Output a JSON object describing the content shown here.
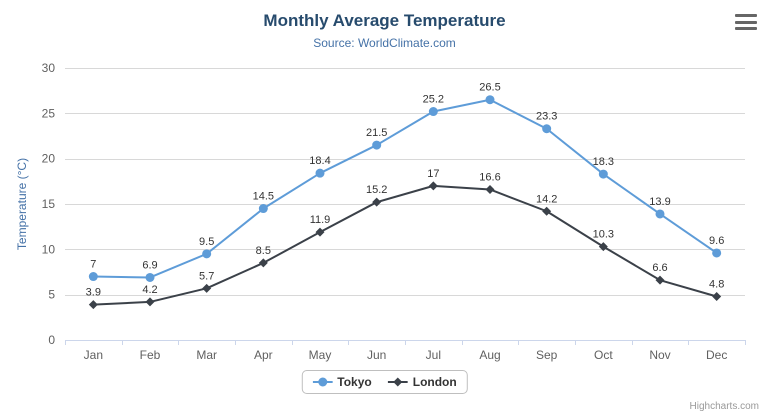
{
  "credits": {
    "label": "Highcharts.com"
  },
  "icons": {
    "export_menu": "hamburger-menu-icon"
  },
  "chart_data": {
    "type": "line",
    "title": "Monthly Average Temperature",
    "subtitle": "Source: WorldClimate.com",
    "categories": [
      "Jan",
      "Feb",
      "Mar",
      "Apr",
      "May",
      "Jun",
      "Jul",
      "Aug",
      "Sep",
      "Oct",
      "Nov",
      "Dec"
    ],
    "series": [
      {
        "name": "Tokyo",
        "color": "#5e9cd8",
        "marker": "circle",
        "values": [
          7,
          6.9,
          9.5,
          14.5,
          18.4,
          21.5,
          25.2,
          26.5,
          23.3,
          18.3,
          13.9,
          9.6
        ]
      },
      {
        "name": "London",
        "color": "#3b4149",
        "marker": "diamond",
        "values": [
          3.9,
          4.2,
          5.7,
          8.5,
          11.9,
          15.2,
          17,
          16.6,
          14.2,
          10.3,
          6.6,
          4.8
        ]
      }
    ],
    "xlabel": "",
    "ylabel": "Temperature (°C)",
    "ylim": [
      0,
      30
    ],
    "ytick_interval": 5,
    "grid": true,
    "legend_position": "bottom",
    "data_labels": true,
    "colors": {
      "title": "#274b6d",
      "subtitle": "#4572a7",
      "axis_label": "#606060",
      "gridline": "#d8d8d8",
      "axis_line": "#ccd6eb",
      "data_label": "#333333"
    }
  }
}
